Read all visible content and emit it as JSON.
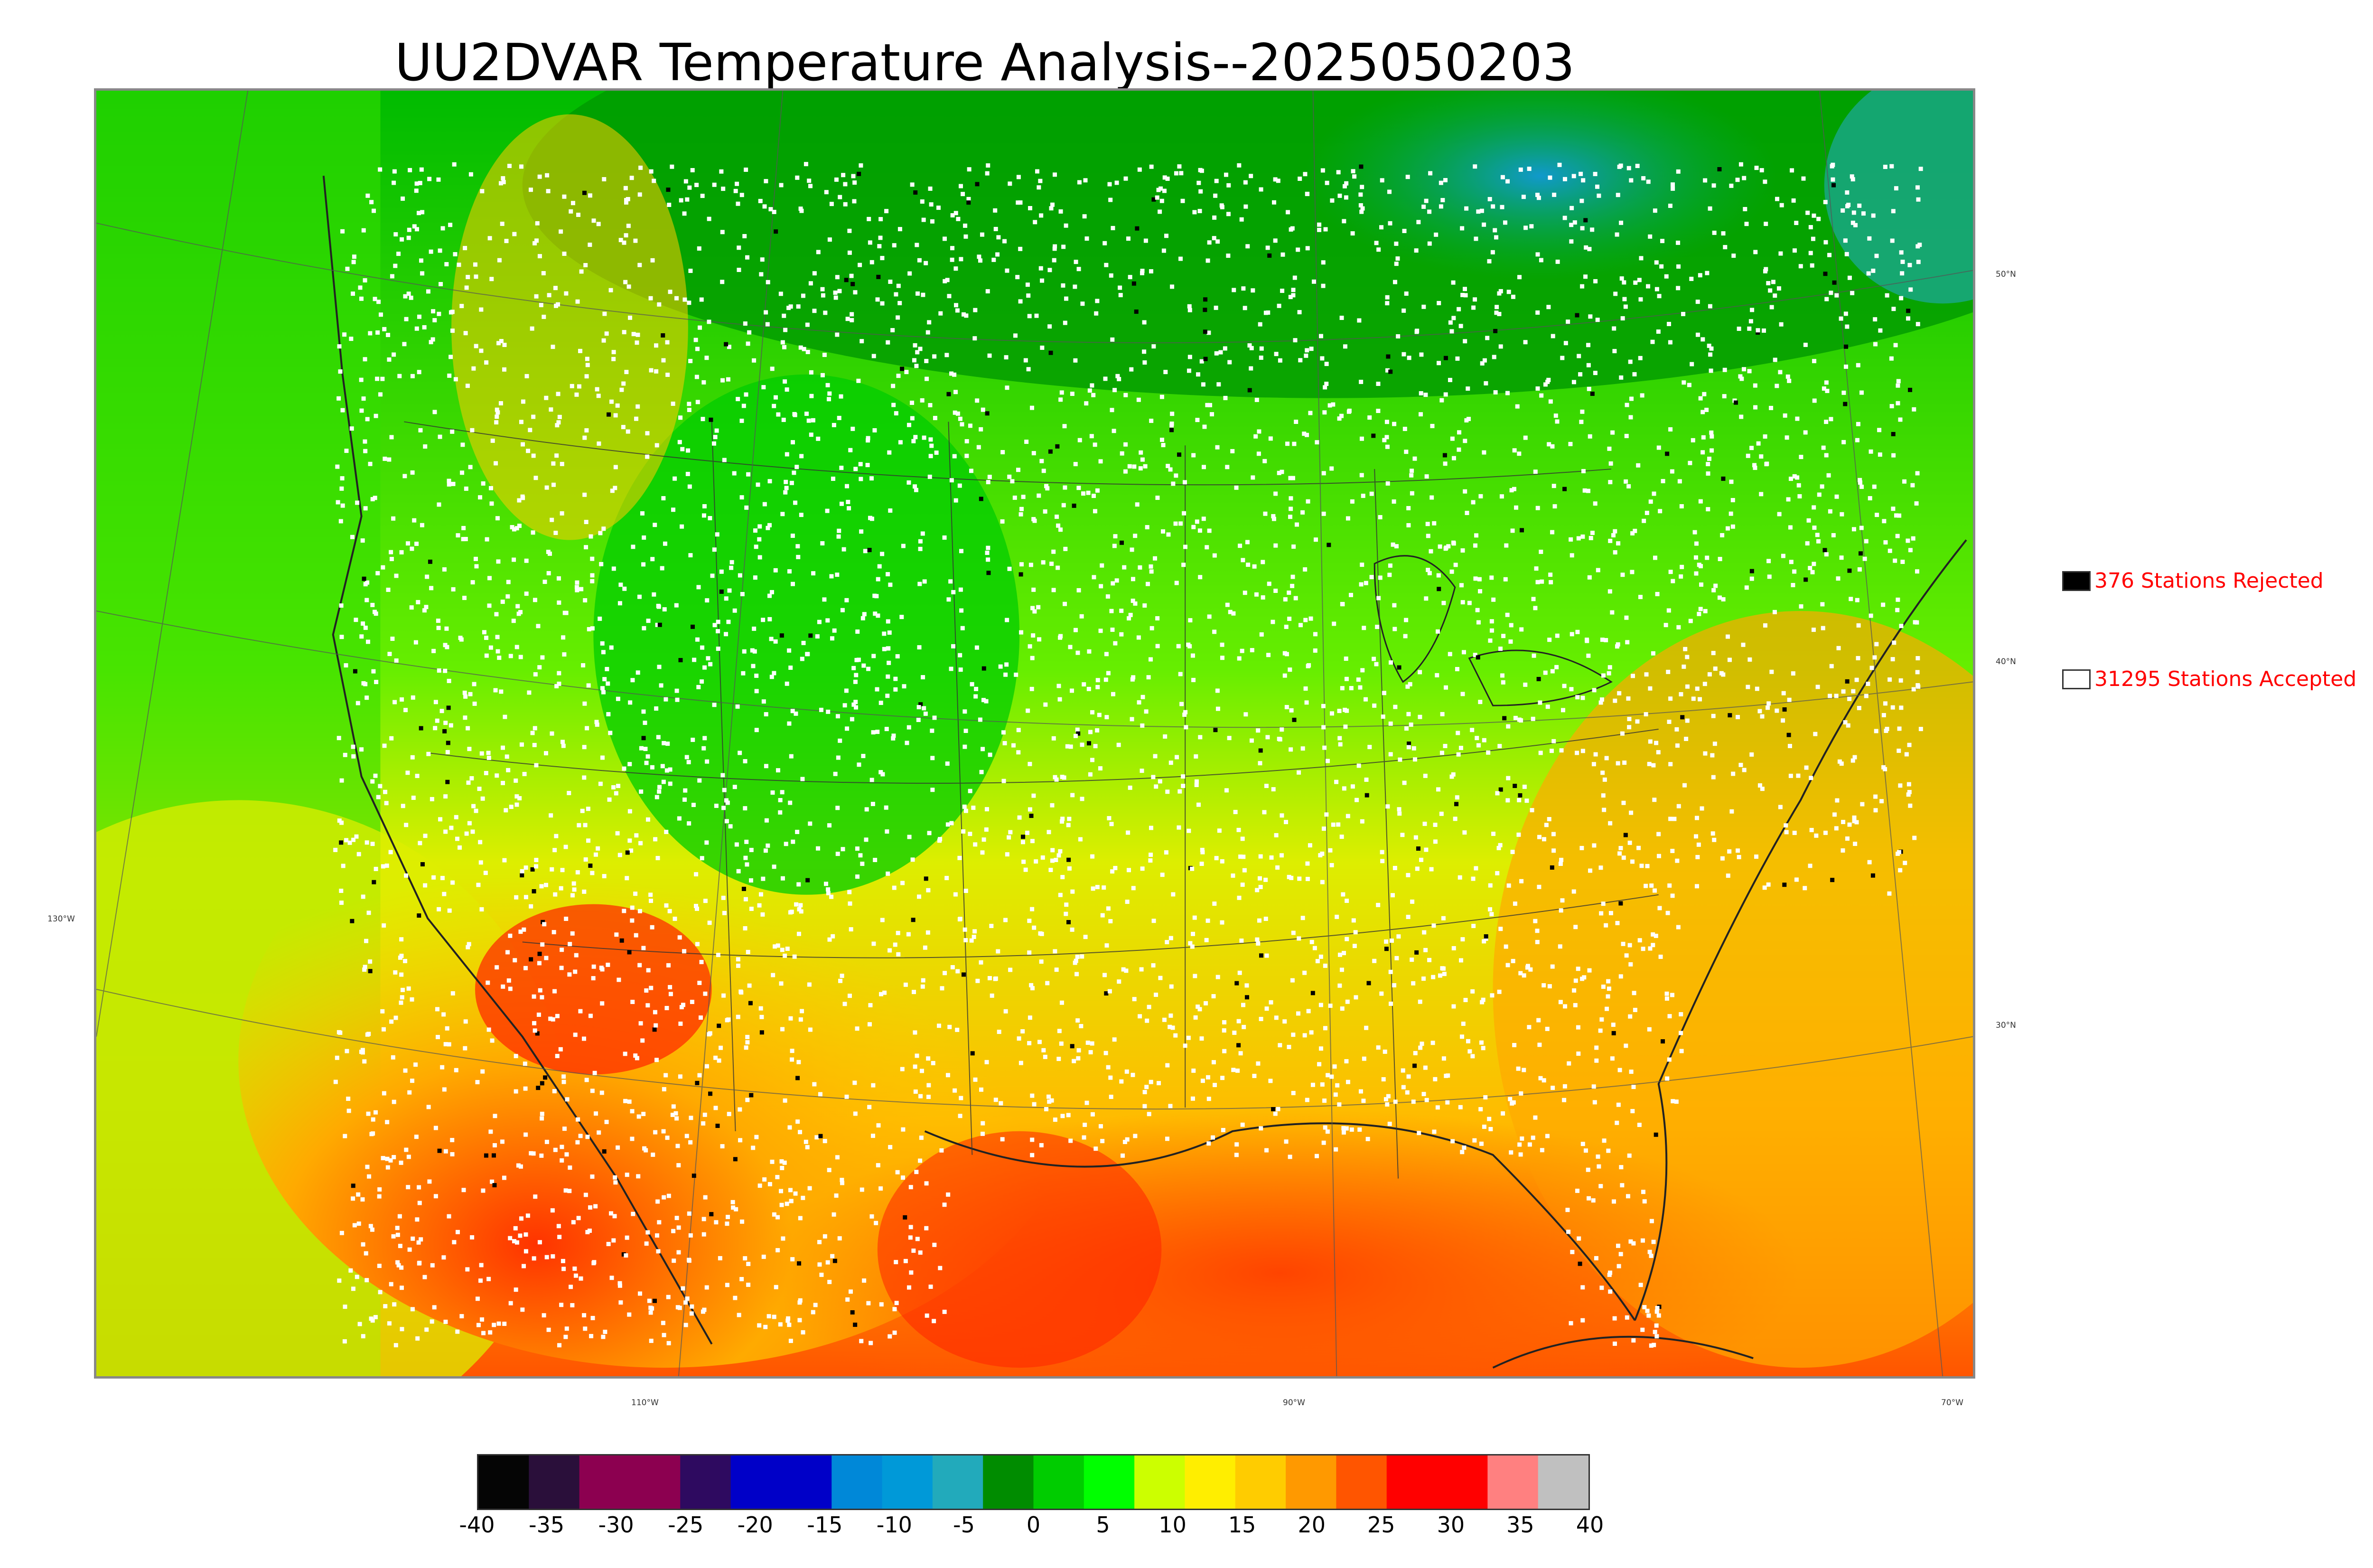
{
  "title": "UU2DVAR Temperature Analysis--2025050203",
  "map": {
    "lat_labels": [
      "50°N",
      "40°N",
      "30°N"
    ],
    "lon_labels": [
      "130°W",
      "110°W",
      "90°W",
      "70°W"
    ]
  },
  "legend": {
    "rejected": {
      "label": "376 Stations Rejected",
      "color": "#000000"
    },
    "accepted": {
      "label": "31295 Stations Accepted",
      "color": "#ffffff"
    }
  },
  "colorbar": {
    "ticks": [
      "-40",
      "-35",
      "-30",
      "-25",
      "-20",
      "-15",
      "-10",
      "-5",
      "0",
      "5",
      "10",
      "15",
      "20",
      "25",
      "30",
      "35",
      "40"
    ],
    "colors": [
      "#050505",
      "#2a0f3a",
      "#8c0050",
      "#8c0050",
      "#2e0a60",
      "#0000c8",
      "#0000c8",
      "#0088d8",
      "#0099d8",
      "#22aabb",
      "#008c00",
      "#00cc00",
      "#00ff00",
      "#ccff00",
      "#ffee00",
      "#ffcc00",
      "#ff9900",
      "#ff5500",
      "#ff0000",
      "#ff0000",
      "#ff8080",
      "#c0c0c0"
    ]
  }
}
